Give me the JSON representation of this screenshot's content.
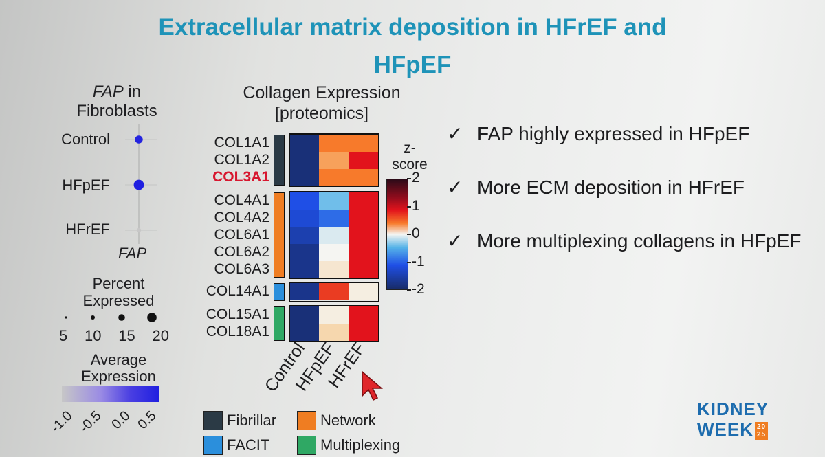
{
  "slide": {
    "title_line1": "Extracellular matrix deposition in HFrEF and",
    "title_line2": "HFpEF"
  },
  "dotplot": {
    "title_italic": "FAP",
    "title_rest": " in",
    "title_line2": "Fibroblasts",
    "groups": [
      "Control",
      "HFpEF",
      "HFrEF"
    ],
    "xlabel": "FAP",
    "percent_title_line1": "Percent",
    "percent_title_line2": "Expressed",
    "percent_ticks": [
      "5",
      "10",
      "15",
      "20"
    ],
    "avg_title_line1": "Average",
    "avg_title_line2": "Expression",
    "avg_ticks": [
      "-1.0",
      "-0.5",
      "0.0",
      "0.5"
    ],
    "low_color": "#c7c7c7",
    "high_color": "#1f1fe0"
  },
  "heatmap": {
    "title_line1": "Collagen Expression",
    "title_line2": "[proteomics]",
    "highlight_gene": "COL3A1",
    "colorbar_title_line1": "z-",
    "colorbar_title_line2": "score",
    "colorbar_ticks": [
      "2",
      "1",
      "0",
      "-1",
      "-2"
    ],
    "category_legend": [
      {
        "label": "Fibrillar",
        "color": "#2b3a45"
      },
      {
        "label": "Network",
        "color": "#ef7d22"
      },
      {
        "label": "FACIT",
        "color": "#2b8fdc"
      },
      {
        "label": "Multiplexing",
        "color": "#2fa864"
      }
    ]
  },
  "chart_data": [
    {
      "type": "scatter",
      "title": "FAP in Fibroblasts",
      "xlabel": "FAP",
      "categories": [
        "Control",
        "HFpEF",
        "HFrEF"
      ],
      "percent_expressed": [
        10,
        14,
        4
      ],
      "average_expression": [
        0.55,
        0.6,
        -1.0
      ],
      "legend_percent_range": [
        5,
        20
      ],
      "legend_avg_range": [
        -1.0,
        0.5
      ]
    },
    {
      "type": "heatmap",
      "title": "Collagen Expression [proteomics]",
      "columns": [
        "Control",
        "HFpEF",
        "HFrEF"
      ],
      "rows": [
        {
          "gene": "COL1A1",
          "group": "Fibrillar",
          "z": [
            -1.9,
            1.0,
            1.0
          ]
        },
        {
          "gene": "COL1A2",
          "group": "Fibrillar",
          "z": [
            -1.9,
            0.8,
            1.5
          ]
        },
        {
          "gene": "COL3A1",
          "group": "Fibrillar",
          "z": [
            -1.9,
            1.0,
            1.0
          ]
        },
        {
          "gene": "COL4A1",
          "group": "Network",
          "z": [
            -1.3,
            -0.5,
            1.5
          ]
        },
        {
          "gene": "COL4A2",
          "group": "Network",
          "z": [
            -1.4,
            -1.1,
            1.5
          ]
        },
        {
          "gene": "COL6A1",
          "group": "Network",
          "z": [
            -1.6,
            -0.1,
            1.5
          ]
        },
        {
          "gene": "COL6A2",
          "group": "Network",
          "z": [
            -1.8,
            0.0,
            1.5
          ]
        },
        {
          "gene": "COL6A3",
          "group": "Network",
          "z": [
            -1.8,
            0.2,
            1.5
          ]
        },
        {
          "gene": "COL14A1",
          "group": "FACIT",
          "z": [
            -1.8,
            1.3,
            0.1
          ]
        },
        {
          "gene": "COL15A1",
          "group": "Multiplexing",
          "z": [
            -1.9,
            0.1,
            1.5
          ]
        },
        {
          "gene": "COL18A1",
          "group": "Multiplexing",
          "z": [
            -1.9,
            0.4,
            1.5
          ]
        }
      ],
      "zlim": [
        -2,
        2
      ]
    }
  ],
  "bullets": [
    {
      "check": "✓",
      "text": "FAP highly expressed in HFpEF"
    },
    {
      "check": "✓",
      "text": "More ECM deposition in HFrEF"
    },
    {
      "check": "✓",
      "text": "More multiplexing collagens in HFpEF"
    }
  ],
  "logo": {
    "line1": "KIDNEY",
    "line2": "WEEK",
    "year_top": "20",
    "year_bottom": "25"
  }
}
